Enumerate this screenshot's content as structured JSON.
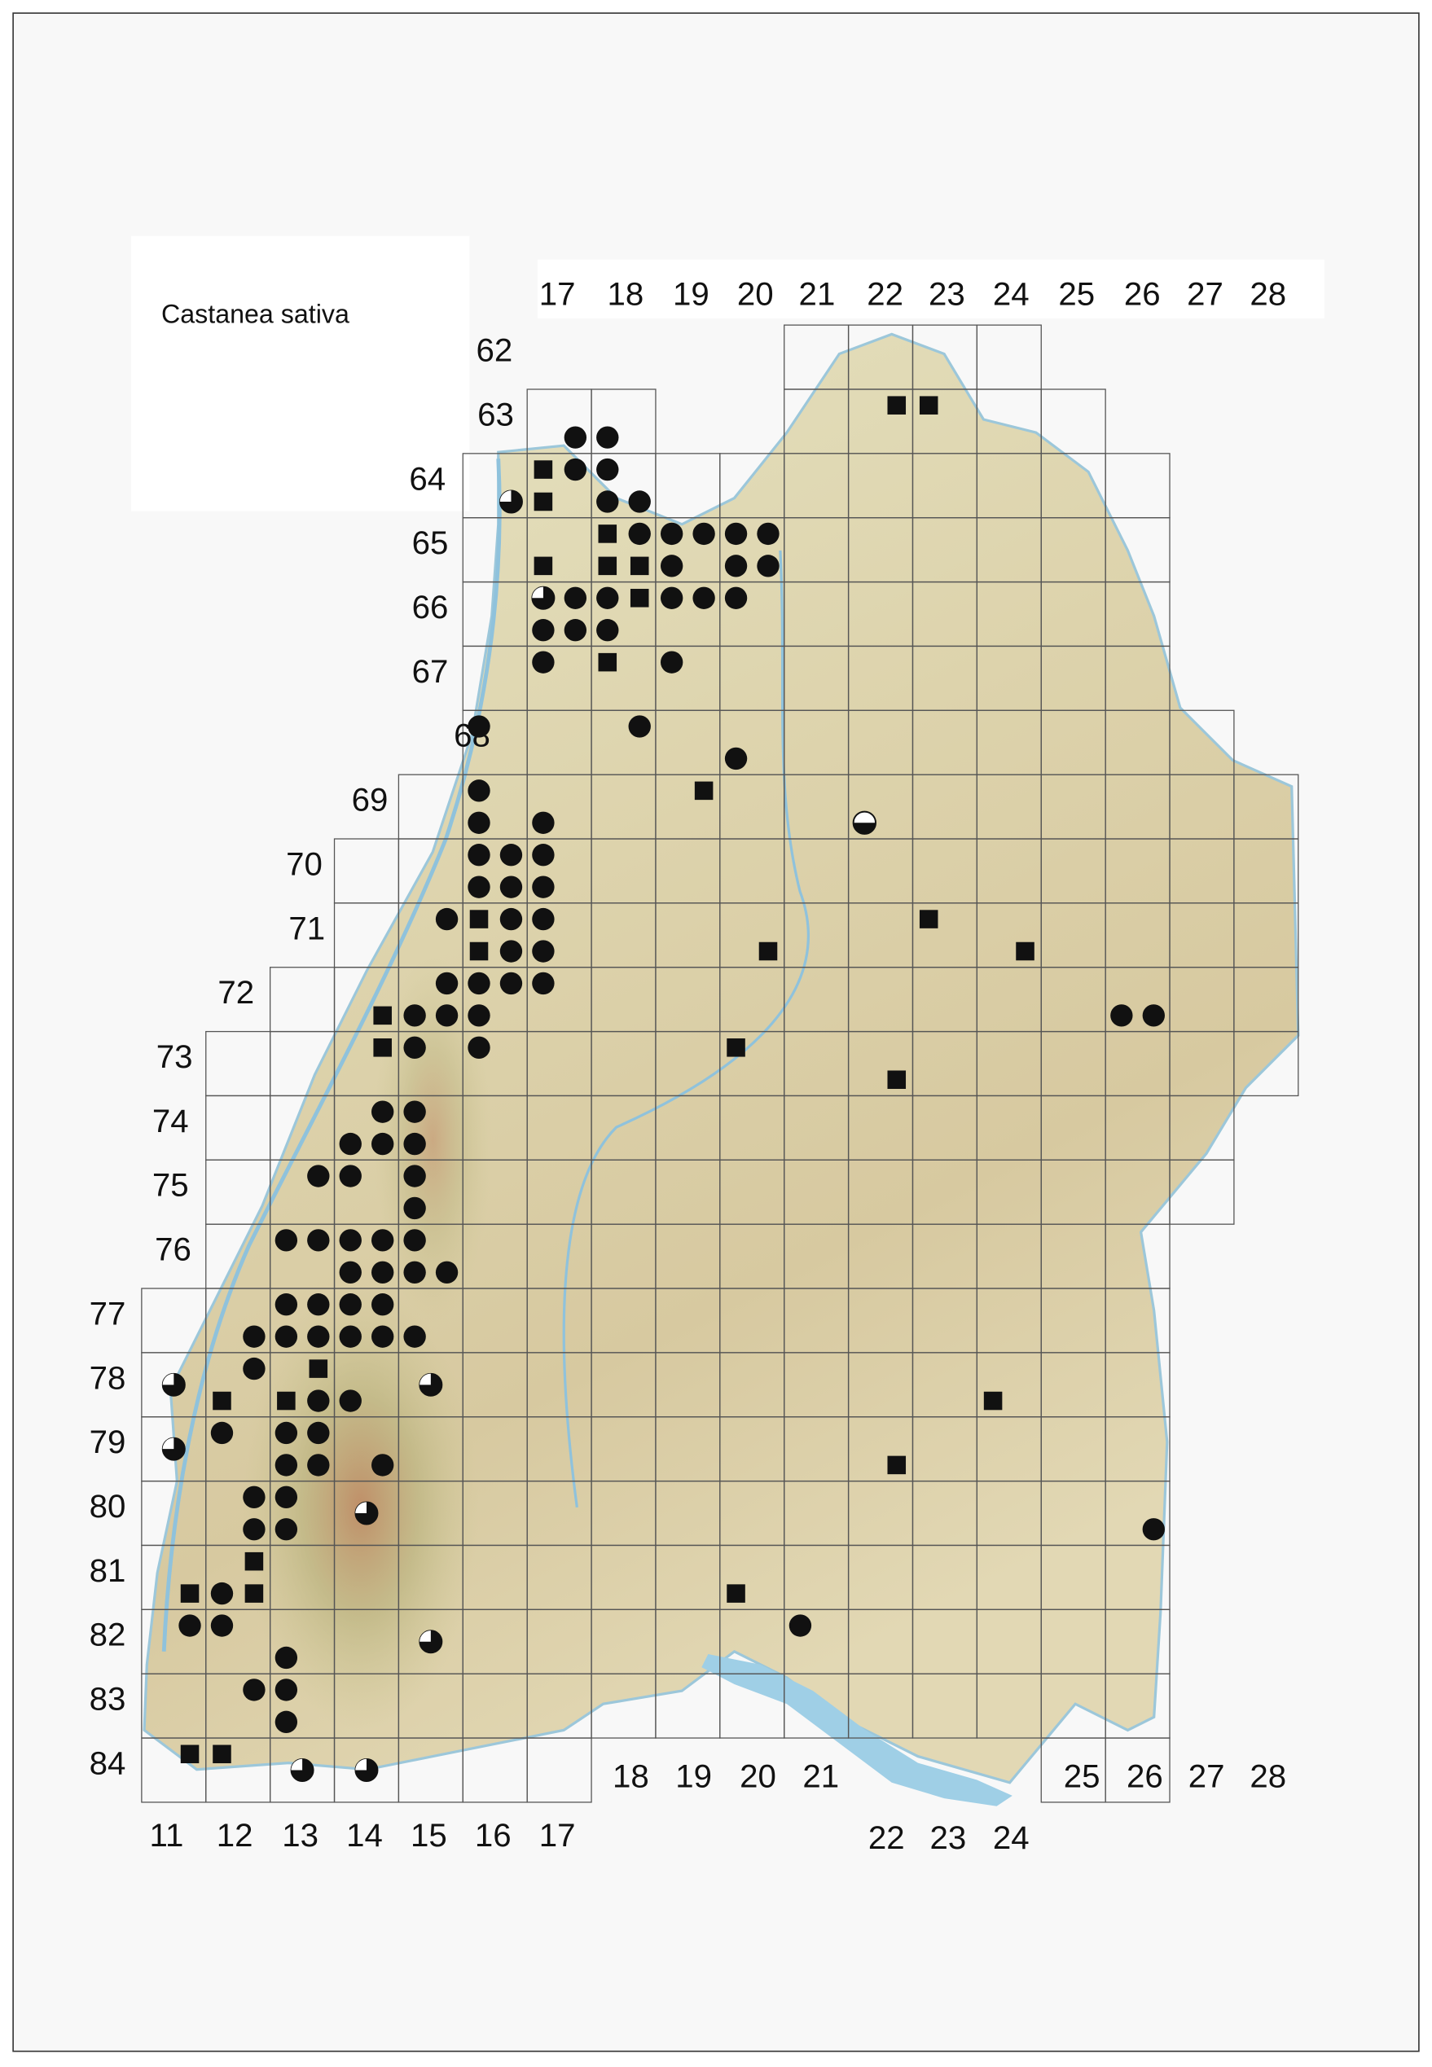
{
  "title": "Castanea sativa",
  "top_labels": [
    "17",
    "18",
    "19",
    "20",
    "21",
    "22",
    "23",
    "24",
    "25",
    "26",
    "27",
    "28"
  ],
  "row_labels": [
    "62",
    "63",
    "64",
    "65",
    "66",
    "67",
    "68",
    "69",
    "70",
    "71",
    "72",
    "73",
    "74",
    "75",
    "76",
    "77",
    "78",
    "79",
    "80",
    "81",
    "82",
    "83",
    "84"
  ],
  "bottom_labels": {
    "left": [
      "11",
      "12",
      "13",
      "14",
      "15",
      "16",
      "17"
    ],
    "middle": [
      "18",
      "19",
      "20",
      "21"
    ],
    "lake": [
      "22",
      "23",
      "24"
    ],
    "right": [
      "25",
      "26",
      "27",
      "28"
    ]
  },
  "records": [
    {
      "x": 17.75,
      "y": 63.75,
      "symbol": "circle"
    },
    {
      "x": 18.25,
      "y": 63.75,
      "symbol": "circle"
    },
    {
      "x": 22.75,
      "y": 63.25,
      "symbol": "square"
    },
    {
      "x": 23.25,
      "y": 63.25,
      "symbol": "square"
    },
    {
      "x": 17.25,
      "y": 64.25,
      "symbol": "square"
    },
    {
      "x": 17.75,
      "y": 64.25,
      "symbol": "circle"
    },
    {
      "x": 18.25,
      "y": 64.25,
      "symbol": "circle"
    },
    {
      "x": 16.75,
      "y": 64.75,
      "symbol": "quarter"
    },
    {
      "x": 17.25,
      "y": 64.75,
      "symbol": "square"
    },
    {
      "x": 18.25,
      "y": 64.75,
      "symbol": "circle"
    },
    {
      "x": 18.75,
      "y": 64.75,
      "symbol": "circle"
    },
    {
      "x": 18.25,
      "y": 65.25,
      "symbol": "square"
    },
    {
      "x": 18.75,
      "y": 65.25,
      "symbol": "circle"
    },
    {
      "x": 19.25,
      "y": 65.25,
      "symbol": "circle"
    },
    {
      "x": 19.75,
      "y": 65.25,
      "symbol": "circle"
    },
    {
      "x": 20.25,
      "y": 65.25,
      "symbol": "circle"
    },
    {
      "x": 20.75,
      "y": 65.25,
      "symbol": "circle"
    },
    {
      "x": 17.25,
      "y": 65.75,
      "symbol": "square"
    },
    {
      "x": 18.25,
      "y": 65.75,
      "symbol": "square"
    },
    {
      "x": 18.75,
      "y": 65.75,
      "symbol": "square"
    },
    {
      "x": 19.25,
      "y": 65.75,
      "symbol": "circle"
    },
    {
      "x": 20.25,
      "y": 65.75,
      "symbol": "circle"
    },
    {
      "x": 20.75,
      "y": 65.75,
      "symbol": "circle"
    },
    {
      "x": 17.25,
      "y": 66.25,
      "symbol": "quarter"
    },
    {
      "x": 17.75,
      "y": 66.25,
      "symbol": "circle"
    },
    {
      "x": 18.25,
      "y": 66.25,
      "symbol": "circle"
    },
    {
      "x": 18.75,
      "y": 66.25,
      "symbol": "square"
    },
    {
      "x": 19.25,
      "y": 66.25,
      "symbol": "circle"
    },
    {
      "x": 19.75,
      "y": 66.25,
      "symbol": "circle"
    },
    {
      "x": 20.25,
      "y": 66.25,
      "symbol": "circle"
    },
    {
      "x": 17.25,
      "y": 66.75,
      "symbol": "circle"
    },
    {
      "x": 17.75,
      "y": 66.75,
      "symbol": "circle"
    },
    {
      "x": 18.25,
      "y": 66.75,
      "symbol": "circle"
    },
    {
      "x": 17.25,
      "y": 67.25,
      "symbol": "circle"
    },
    {
      "x": 18.25,
      "y": 67.25,
      "symbol": "square"
    },
    {
      "x": 19.25,
      "y": 67.25,
      "symbol": "circle"
    },
    {
      "x": 16.25,
      "y": 68.25,
      "symbol": "circle"
    },
    {
      "x": 18.75,
      "y": 68.25,
      "symbol": "circle"
    },
    {
      "x": 20.25,
      "y": 68.75,
      "symbol": "circle"
    },
    {
      "x": 16.25,
      "y": 69.25,
      "symbol": "circle"
    },
    {
      "x": 19.75,
      "y": 69.25,
      "symbol": "square"
    },
    {
      "x": 16.25,
      "y": 69.75,
      "symbol": "circle"
    },
    {
      "x": 17.25,
      "y": 69.75,
      "symbol": "circle"
    },
    {
      "x": 22.25,
      "y": 69.75,
      "symbol": "half"
    },
    {
      "x": 16.25,
      "y": 70.25,
      "symbol": "circle"
    },
    {
      "x": 16.75,
      "y": 70.25,
      "symbol": "circle"
    },
    {
      "x": 17.25,
      "y": 70.25,
      "symbol": "circle"
    },
    {
      "x": 16.25,
      "y": 70.75,
      "symbol": "circle"
    },
    {
      "x": 16.75,
      "y": 70.75,
      "symbol": "circle"
    },
    {
      "x": 17.25,
      "y": 70.75,
      "symbol": "circle"
    },
    {
      "x": 15.75,
      "y": 71.25,
      "symbol": "circle"
    },
    {
      "x": 16.25,
      "y": 71.25,
      "symbol": "square"
    },
    {
      "x": 16.75,
      "y": 71.25,
      "symbol": "circle"
    },
    {
      "x": 17.25,
      "y": 71.25,
      "symbol": "circle"
    },
    {
      "x": 23.25,
      "y": 71.25,
      "symbol": "square"
    },
    {
      "x": 16.25,
      "y": 71.75,
      "symbol": "square"
    },
    {
      "x": 16.75,
      "y": 71.75,
      "symbol": "circle"
    },
    {
      "x": 17.25,
      "y": 71.75,
      "symbol": "circle"
    },
    {
      "x": 20.75,
      "y": 71.75,
      "symbol": "square"
    },
    {
      "x": 24.75,
      "y": 71.75,
      "symbol": "square"
    },
    {
      "x": 15.75,
      "y": 72.25,
      "symbol": "circle"
    },
    {
      "x": 16.25,
      "y": 72.25,
      "symbol": "circle"
    },
    {
      "x": 16.75,
      "y": 72.25,
      "symbol": "circle"
    },
    {
      "x": 17.25,
      "y": 72.25,
      "symbol": "circle"
    },
    {
      "x": 14.75,
      "y": 72.75,
      "symbol": "square"
    },
    {
      "x": 15.25,
      "y": 72.75,
      "symbol": "circle"
    },
    {
      "x": 15.75,
      "y": 72.75,
      "symbol": "circle"
    },
    {
      "x": 16.25,
      "y": 72.75,
      "symbol": "circle"
    },
    {
      "x": 26.25,
      "y": 72.75,
      "symbol": "circle"
    },
    {
      "x": 26.75,
      "y": 72.75,
      "symbol": "circle"
    },
    {
      "x": 14.75,
      "y": 73.25,
      "symbol": "square"
    },
    {
      "x": 15.25,
      "y": 73.25,
      "symbol": "circle"
    },
    {
      "x": 16.25,
      "y": 73.25,
      "symbol": "circle"
    },
    {
      "x": 20.25,
      "y": 73.25,
      "symbol": "square"
    },
    {
      "x": 22.75,
      "y": 73.75,
      "symbol": "square"
    },
    {
      "x": 14.75,
      "y": 74.25,
      "symbol": "circle"
    },
    {
      "x": 15.25,
      "y": 74.25,
      "symbol": "circle"
    },
    {
      "x": 14.25,
      "y": 74.75,
      "symbol": "circle"
    },
    {
      "x": 14.75,
      "y": 74.75,
      "symbol": "circle"
    },
    {
      "x": 15.25,
      "y": 74.75,
      "symbol": "circle"
    },
    {
      "x": 13.75,
      "y": 75.25,
      "symbol": "circle"
    },
    {
      "x": 14.25,
      "y": 75.25,
      "symbol": "circle"
    },
    {
      "x": 15.25,
      "y": 75.25,
      "symbol": "circle"
    },
    {
      "x": 15.25,
      "y": 75.75,
      "symbol": "circle"
    },
    {
      "x": 13.25,
      "y": 76.25,
      "symbol": "circle"
    },
    {
      "x": 13.75,
      "y": 76.25,
      "symbol": "circle"
    },
    {
      "x": 14.25,
      "y": 76.25,
      "symbol": "circle"
    },
    {
      "x": 14.75,
      "y": 76.25,
      "symbol": "circle"
    },
    {
      "x": 15.25,
      "y": 76.25,
      "symbol": "circle"
    },
    {
      "x": 14.25,
      "y": 76.75,
      "symbol": "circle"
    },
    {
      "x": 14.75,
      "y": 76.75,
      "symbol": "circle"
    },
    {
      "x": 15.25,
      "y": 76.75,
      "symbol": "circle"
    },
    {
      "x": 15.75,
      "y": 76.75,
      "symbol": "circle"
    },
    {
      "x": 13.25,
      "y": 77.25,
      "symbol": "circle"
    },
    {
      "x": 13.75,
      "y": 77.25,
      "symbol": "circle"
    },
    {
      "x": 14.25,
      "y": 77.25,
      "symbol": "circle"
    },
    {
      "x": 14.75,
      "y": 77.25,
      "symbol": "circle"
    },
    {
      "x": 12.75,
      "y": 77.75,
      "symbol": "circle"
    },
    {
      "x": 13.25,
      "y": 77.75,
      "symbol": "circle"
    },
    {
      "x": 13.75,
      "y": 77.75,
      "symbol": "circle"
    },
    {
      "x": 14.25,
      "y": 77.75,
      "symbol": "circle"
    },
    {
      "x": 14.75,
      "y": 77.75,
      "symbol": "circle"
    },
    {
      "x": 15.25,
      "y": 77.75,
      "symbol": "circle"
    },
    {
      "x": 12.75,
      "y": 78.25,
      "symbol": "circle"
    },
    {
      "x": 13.75,
      "y": 78.25,
      "symbol": "square"
    },
    {
      "x": 11.5,
      "y": 78.5,
      "symbol": "quarter"
    },
    {
      "x": 15.5,
      "y": 78.5,
      "symbol": "quarter"
    },
    {
      "x": 12.25,
      "y": 78.75,
      "symbol": "square"
    },
    {
      "x": 13.25,
      "y": 78.75,
      "symbol": "square"
    },
    {
      "x": 13.75,
      "y": 78.75,
      "symbol": "circle"
    },
    {
      "x": 14.25,
      "y": 78.75,
      "symbol": "circle"
    },
    {
      "x": 24.25,
      "y": 78.75,
      "symbol": "square"
    },
    {
      "x": 12.25,
      "y": 79.25,
      "symbol": "circle"
    },
    {
      "x": 13.25,
      "y": 79.25,
      "symbol": "circle"
    },
    {
      "x": 13.75,
      "y": 79.25,
      "symbol": "circle"
    },
    {
      "x": 11.5,
      "y": 79.5,
      "symbol": "quarter"
    },
    {
      "x": 13.25,
      "y": 79.75,
      "symbol": "circle"
    },
    {
      "x": 13.75,
      "y": 79.75,
      "symbol": "circle"
    },
    {
      "x": 14.75,
      "y": 79.75,
      "symbol": "circle"
    },
    {
      "x": 22.75,
      "y": 79.75,
      "symbol": "square"
    },
    {
      "x": 12.75,
      "y": 80.25,
      "symbol": "circle"
    },
    {
      "x": 13.25,
      "y": 80.25,
      "symbol": "circle"
    },
    {
      "x": 14.5,
      "y": 80.5,
      "symbol": "quarter"
    },
    {
      "x": 12.75,
      "y": 80.75,
      "symbol": "circle"
    },
    {
      "x": 13.25,
      "y": 80.75,
      "symbol": "circle"
    },
    {
      "x": 26.75,
      "y": 80.75,
      "symbol": "circle"
    },
    {
      "x": 12.75,
      "y": 81.25,
      "symbol": "square"
    },
    {
      "x": 11.75,
      "y": 81.75,
      "symbol": "square"
    },
    {
      "x": 12.25,
      "y": 81.75,
      "symbol": "circle"
    },
    {
      "x": 12.75,
      "y": 81.75,
      "symbol": "square"
    },
    {
      "x": 20.25,
      "y": 81.75,
      "symbol": "square"
    },
    {
      "x": 11.75,
      "y": 82.25,
      "symbol": "circle"
    },
    {
      "x": 12.25,
      "y": 82.25,
      "symbol": "circle"
    },
    {
      "x": 21.25,
      "y": 82.25,
      "symbol": "circle"
    },
    {
      "x": 15.5,
      "y": 82.5,
      "symbol": "quarter"
    },
    {
      "x": 13.25,
      "y": 82.75,
      "symbol": "circle"
    },
    {
      "x": 12.75,
      "y": 83.25,
      "symbol": "circle"
    },
    {
      "x": 13.25,
      "y": 83.25,
      "symbol": "circle"
    },
    {
      "x": 13.25,
      "y": 83.75,
      "symbol": "circle"
    },
    {
      "x": 11.75,
      "y": 84.25,
      "symbol": "square"
    },
    {
      "x": 12.25,
      "y": 84.25,
      "symbol": "square"
    },
    {
      "x": 13.5,
      "y": 84.5,
      "symbol": "quarter"
    },
    {
      "x": 14.5,
      "y": 84.5,
      "symbol": "quarter"
    }
  ]
}
